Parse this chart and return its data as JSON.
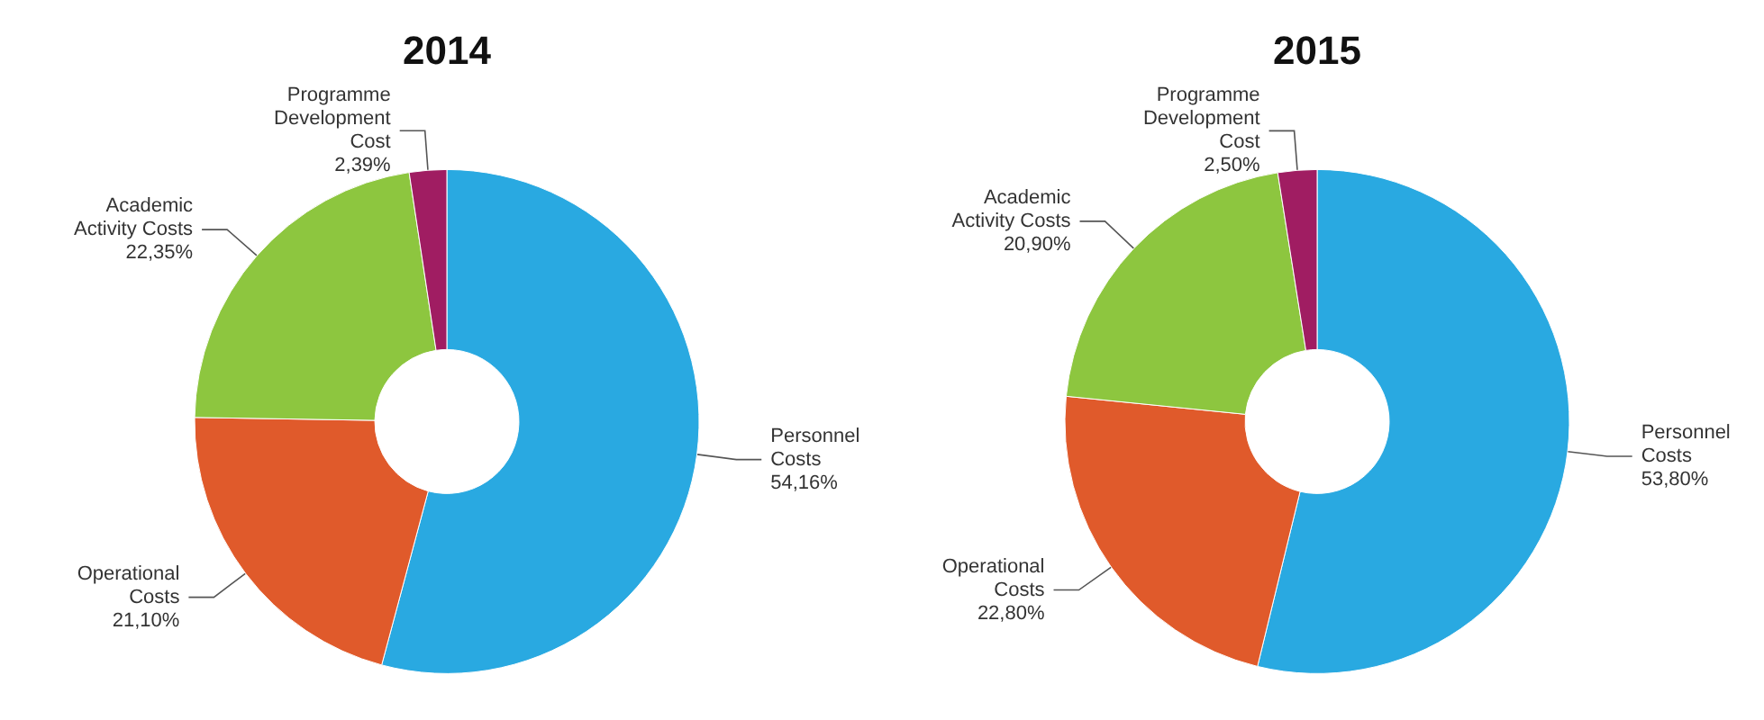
{
  "chart_data": [
    {
      "type": "donut",
      "title": "2014",
      "categories": [
        "Personnel\nCosts",
        "Operational\nCosts",
        "Academic\nActivity Costs",
        "Programme\nDevelopment\nCost"
      ],
      "values": [
        54.16,
        21.1,
        22.35,
        2.39
      ],
      "value_labels": [
        "54,16%",
        "21,10%",
        "22,35%",
        "2,39%"
      ],
      "colors": [
        "#29a9e1",
        "#e05a2b",
        "#8dc63f",
        "#a01d62"
      ]
    },
    {
      "type": "donut",
      "title": "2015",
      "categories": [
        "Personnel\nCosts",
        "Operational\nCosts",
        "Academic\nActivity Costs",
        "Programme\nDevelopment\nCost"
      ],
      "values": [
        53.8,
        22.8,
        20.9,
        2.5
      ],
      "value_labels": [
        "53,80%",
        "22,80%",
        "20,90%",
        "2,50%"
      ],
      "colors": [
        "#29a9e1",
        "#e05a2b",
        "#8dc63f",
        "#a01d62"
      ]
    }
  ]
}
